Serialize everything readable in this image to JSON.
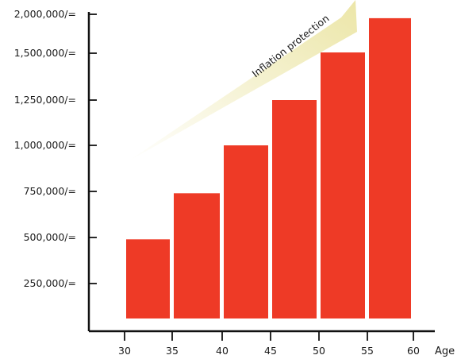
{
  "chart_data": {
    "type": "bar",
    "title": "",
    "xlabel": "Age",
    "ylabel": "",
    "x_ticks": [
      "30",
      "35",
      "40",
      "45",
      "50",
      "55",
      "60"
    ],
    "y_ticks": [
      {
        "value": 250000,
        "label": "250,000/="
      },
      {
        "value": 500000,
        "label": "500,000/="
      },
      {
        "value": 750000,
        "label": "750,000/="
      },
      {
        "value": 1000000,
        "label": "1,000,000/="
      },
      {
        "value": 1250000,
        "label": "1,250,000/="
      },
      {
        "value": 1500000,
        "label": "1,500,000/="
      },
      {
        "value": 2000000,
        "label": "2,000,000/="
      }
    ],
    "categories": [
      "30-35",
      "35-40",
      "40-45",
      "45-50",
      "50-55",
      "55-60"
    ],
    "values": [
      490000,
      740000,
      1000000,
      1250000,
      1510000,
      1950000
    ],
    "annotation": "Inflation protection",
    "grid": false,
    "colors": {
      "bar": "#ee3a26",
      "arrow_start": "#ffffff",
      "arrow_end": "#ece6a8"
    }
  }
}
